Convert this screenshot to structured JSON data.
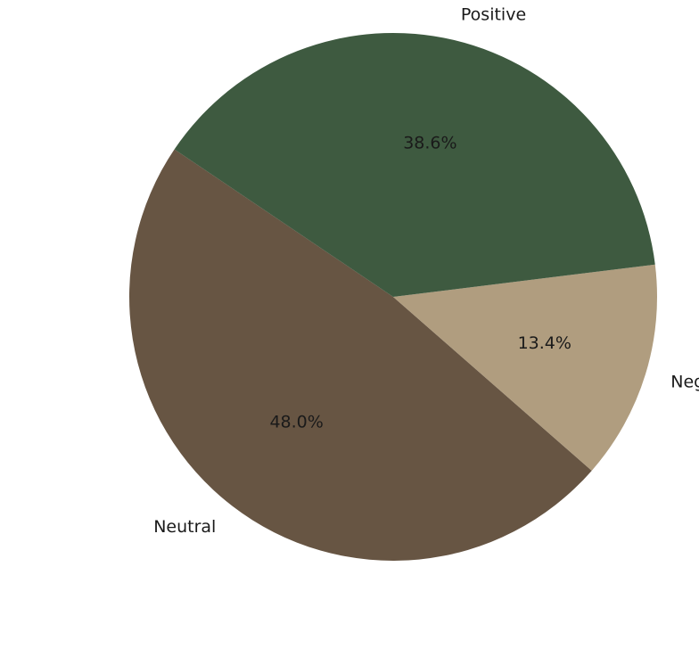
{
  "chart_data": {
    "type": "pie",
    "title": "",
    "slices": [
      {
        "label": "Neutral",
        "value": 48.0,
        "pct_label": "48.0%",
        "color": "#675543"
      },
      {
        "label": "Negative",
        "value": 13.4,
        "pct_label": "13.4%",
        "color": "#b09d7f"
      },
      {
        "label": "Positive",
        "value": 38.6,
        "pct_label": "38.6%",
        "color": "#3e5a40"
      }
    ],
    "start_angle_deg": 146,
    "direction": "counterclockwise",
    "legend": "none"
  }
}
